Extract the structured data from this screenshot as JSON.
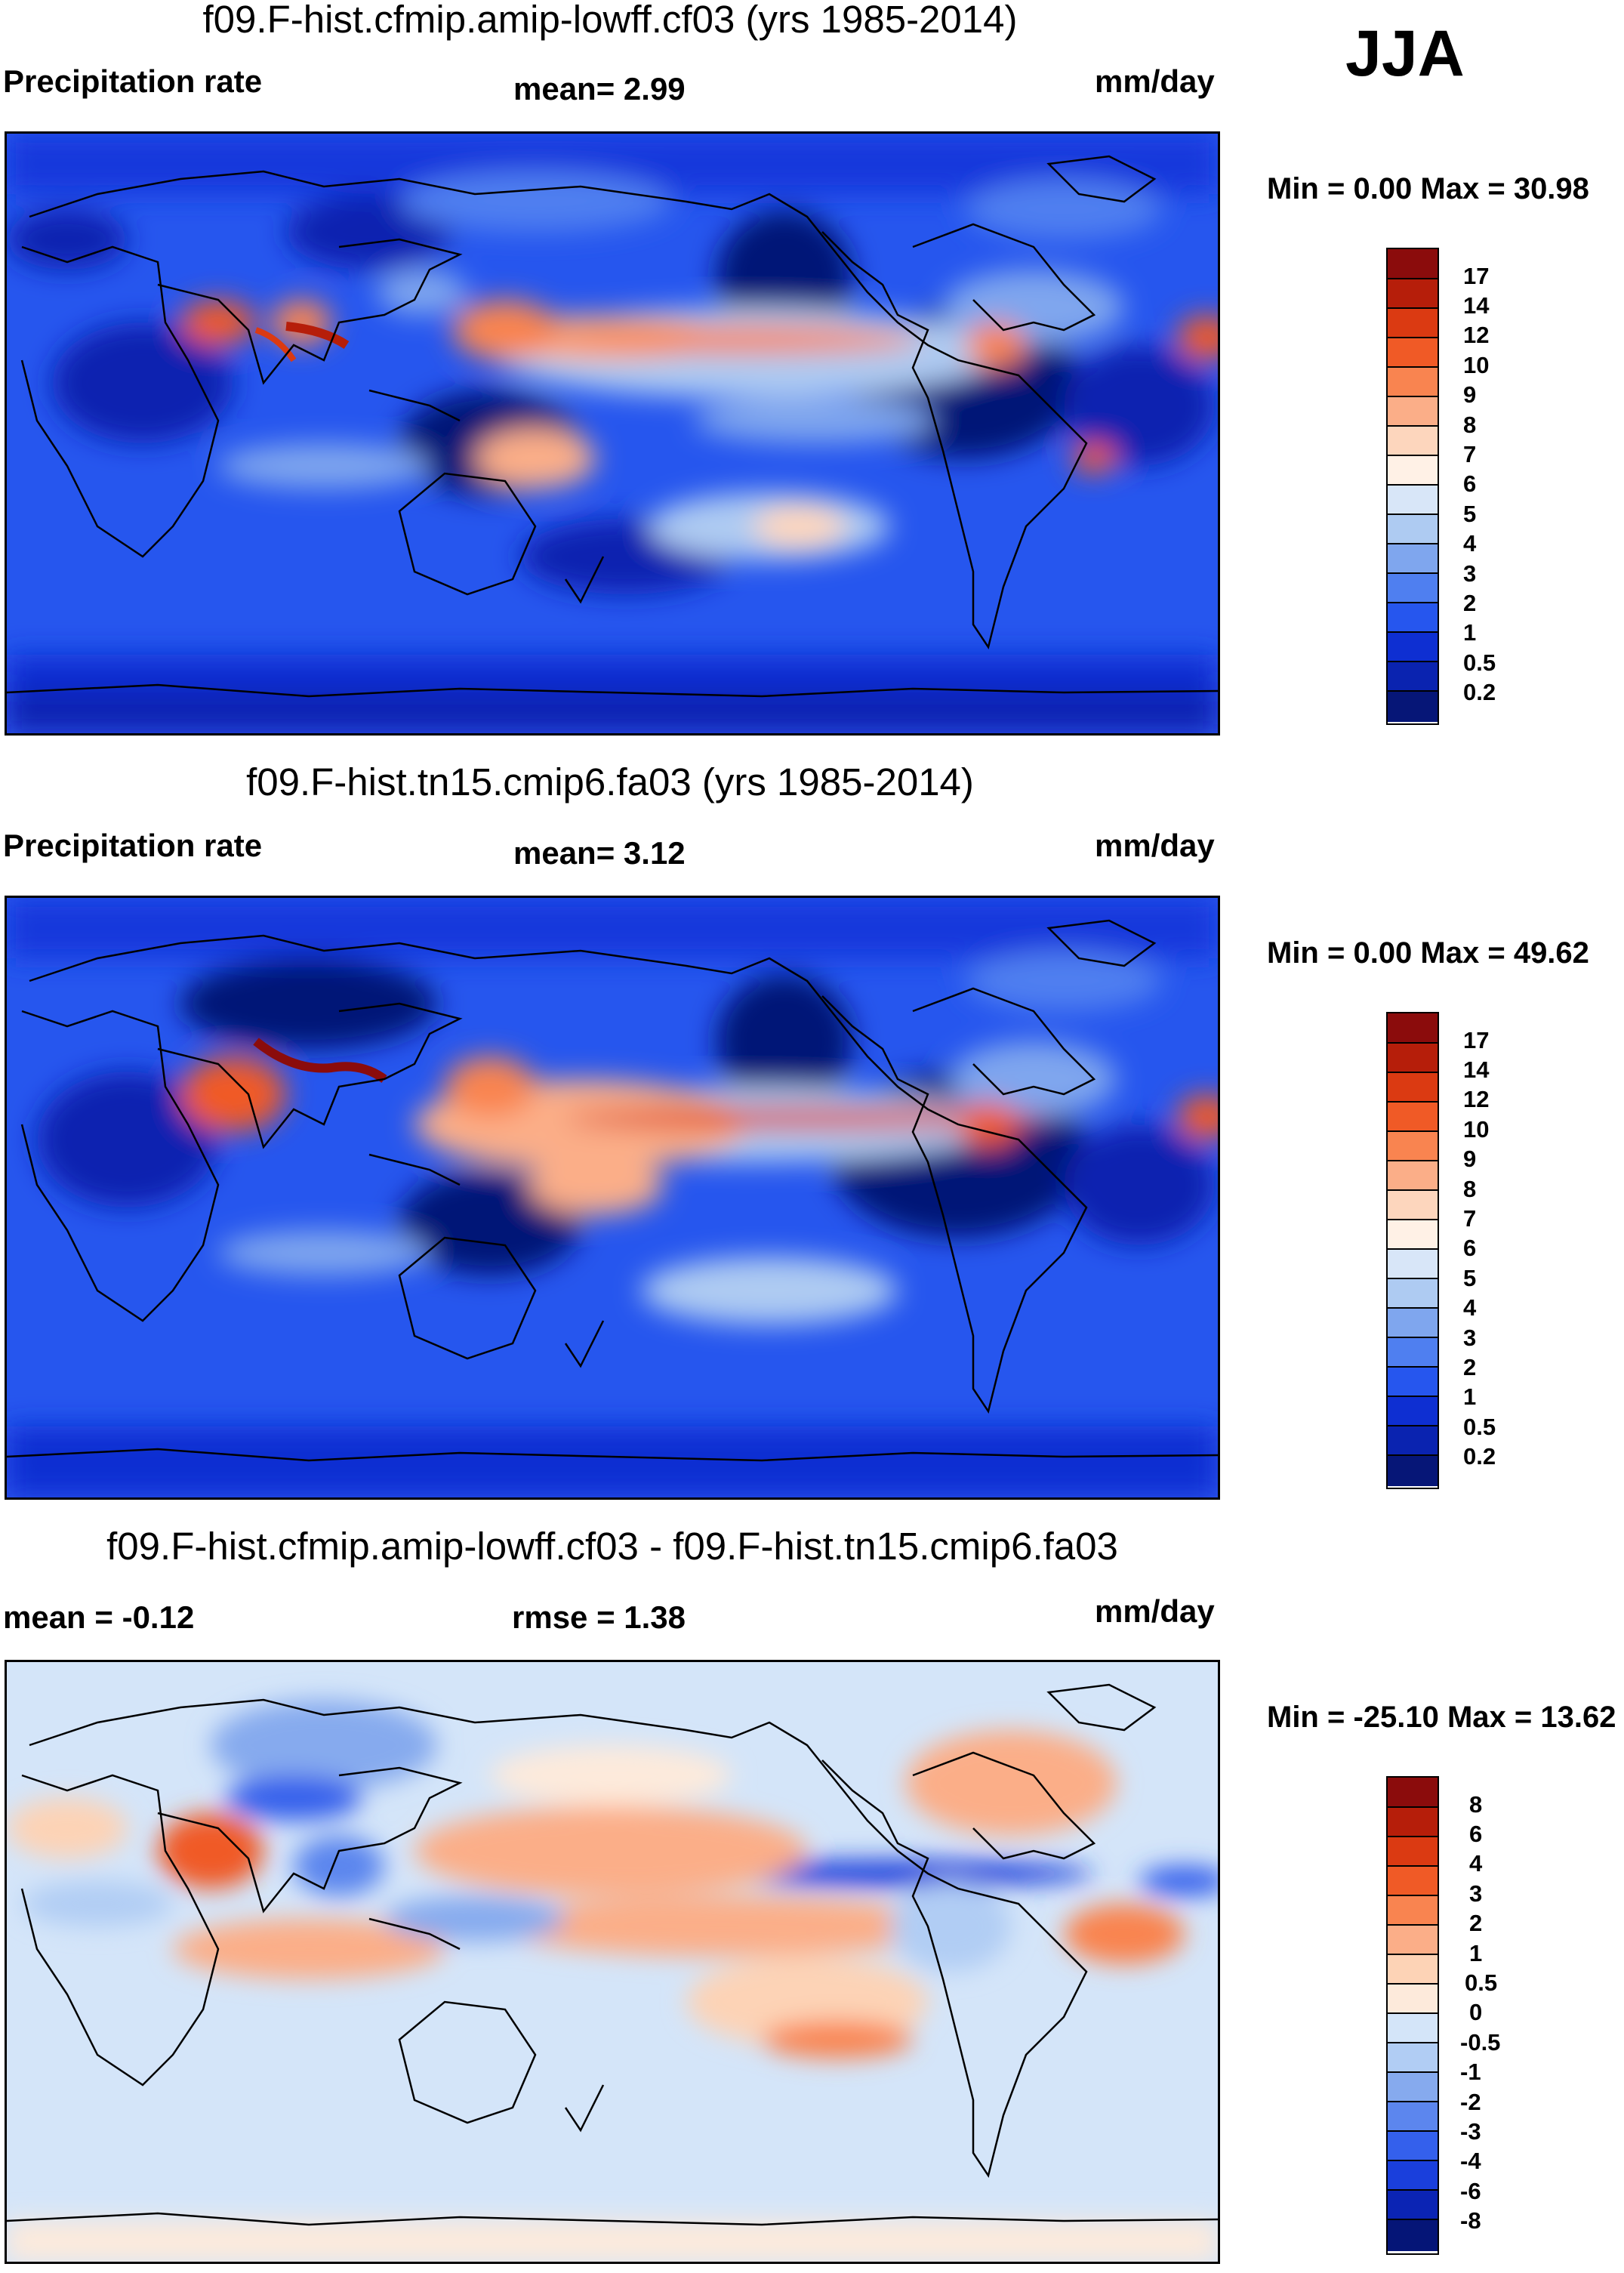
{
  "season": "JJA",
  "panels": [
    {
      "title": "f09.F-hist.cfmip.amip-lowff.cf03 (yrs 1985-2014)",
      "left_label": "Precipitation rate",
      "center_label": "mean=   2.99",
      "right_label": "mm/day",
      "minmax": "Min =   0.00 Max =  30.98",
      "colorbar_labels": [
        "17",
        "14",
        "12",
        "10",
        "9",
        "8",
        "7",
        "6",
        "5",
        "4",
        "3",
        "2",
        "1",
        "0.5",
        "0.2"
      ]
    },
    {
      "title": "f09.F-hist.tn15.cmip6.fa03 (yrs 1985-2014)",
      "left_label": "Precipitation rate",
      "center_label": "mean=   3.12",
      "right_label": "mm/day",
      "minmax": "Min =   0.00 Max =  49.62",
      "colorbar_labels": [
        "17",
        "14",
        "12",
        "10",
        "9",
        "8",
        "7",
        "6",
        "5",
        "4",
        "3",
        "2",
        "1",
        "0.5",
        "0.2"
      ]
    },
    {
      "title": "f09.F-hist.cfmip.amip-lowff.cf03 - f09.F-hist.tn15.cmip6.fa03",
      "left_label": "mean =  -0.12",
      "center_label": "rmse =    1.38",
      "right_label": "mm/day",
      "minmax": "Min = -25.10 Max =  13.62",
      "colorbar_labels": [
        "8",
        "6",
        "4",
        "3",
        "2",
        "1",
        "0.5",
        "0",
        "-0.5",
        "-1",
        "-2",
        "-3",
        "-4",
        "-6",
        "-8"
      ]
    }
  ],
  "colors": {
    "precip_scale": [
      "#8b0c0c",
      "#b61e0a",
      "#db3a12",
      "#f05a26",
      "#f98450",
      "#fbae88",
      "#fdd6bd",
      "#fff1e6",
      "#d8e6f8",
      "#aecbf2",
      "#7fa6ee",
      "#4f7ff0",
      "#2656ee",
      "#0e2fd2",
      "#0a23b0",
      "#061677"
    ],
    "diff_scale": [
      "#8b0c0c",
      "#b61e0a",
      "#db3a12",
      "#f05a26",
      "#f98450",
      "#fbae88",
      "#fdd3b6",
      "#fdeadb",
      "#d4e5f9",
      "#b1cdf4",
      "#86aaee",
      "#5c86ee",
      "#3460ec",
      "#1a3fdc",
      "#0b24b4",
      "#051577"
    ]
  }
}
